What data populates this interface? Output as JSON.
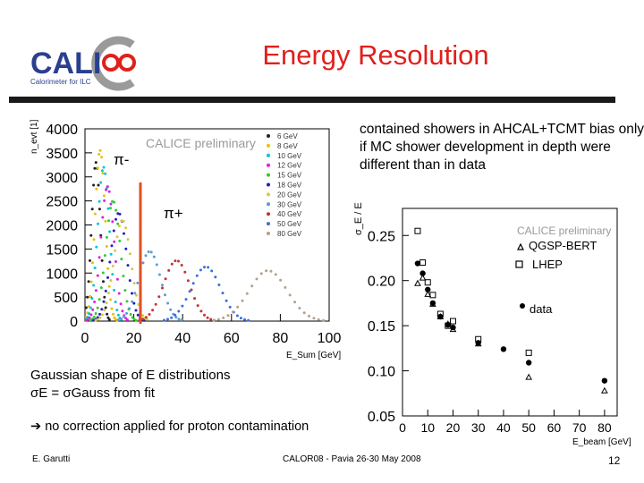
{
  "slide": {
    "title": "Energy Resolution",
    "note": "contained showers in AHCAL+TCMT bias only if MC shower development in depth were different than in data",
    "gauss_line1": "Gaussian shape of E distributions",
    "gauss_line2": "σE = σGauss from fit",
    "no_correction": "no correction applied for proton contamination",
    "footer_author": "E. Garutti",
    "footer_conf": "CALOR08 - Pavia 26-30 May 2008",
    "page_number": "12",
    "logo_text": "CALICE",
    "logo_subtitle": "Calorimeter for ILC"
  },
  "chart_data": [
    {
      "type": "scatter",
      "subtype": "histogram",
      "preliminary_label": "CALICE preliminary",
      "ylabel": "n_evt [1]",
      "xlabel": "E_Sum [GeV]",
      "xlim": [
        0,
        100
      ],
      "ylim": [
        0,
        4000
      ],
      "x_ticks": [
        0,
        20,
        40,
        60,
        80,
        100
      ],
      "y_ticks": [
        0,
        500,
        1000,
        1500,
        2000,
        2500,
        3000,
        3500,
        4000
      ],
      "annotations": [
        "π-",
        "π+"
      ],
      "series": [
        {
          "name": "6 GeV",
          "color": "#222222",
          "mean": 4.5,
          "peak": 3300,
          "sigma": 1.8
        },
        {
          "name": "8 GeV",
          "color": "#e6c200",
          "mean": 6.2,
          "peak": 3550,
          "sigma": 2.1
        },
        {
          "name": "10 GeV",
          "color": "#00c8d8",
          "mean": 7.6,
          "peak": 3200,
          "sigma": 2.4
        },
        {
          "name": "12 GeV",
          "color": "#e020e0",
          "mean": 9.2,
          "peak": 2800,
          "sigma": 2.7
        },
        {
          "name": "15 GeV",
          "color": "#33cc33",
          "mean": 11.5,
          "peak": 2500,
          "sigma": 3.0
        },
        {
          "name": "18 GeV",
          "color": "#2020c0",
          "mean": 13.8,
          "peak": 2250,
          "sigma": 3.3
        },
        {
          "name": "20 GeV",
          "color": "#d4c84a",
          "mean": 15.3,
          "peak": 2100,
          "sigma": 3.5
        },
        {
          "name": "30 GeV",
          "color": "#5b9bd5",
          "mean": 26.5,
          "peak": 1450,
          "sigma": 4.5
        },
        {
          "name": "40 GeV",
          "color": "#c83232",
          "mean": 37.5,
          "peak": 1260,
          "sigma": 5.3
        },
        {
          "name": "50 GeV",
          "color": "#3a6ee0",
          "mean": 49.5,
          "peak": 1130,
          "sigma": 6.0
        },
        {
          "name": "80 GeV",
          "color": "#b4a08c",
          "mean": 75.0,
          "peak": 1050,
          "sigma": 7.8
        }
      ]
    },
    {
      "type": "scatter",
      "preliminary_label": "CALICE preliminary",
      "ylabel": "σ_E / E",
      "xlabel": "E_beam [GeV]",
      "xlim": [
        0,
        85
      ],
      "ylim": [
        0.05,
        0.28
      ],
      "x_ticks": [
        0,
        10,
        20,
        30,
        40,
        50,
        60,
        70,
        80
      ],
      "y_ticks": [
        0.05,
        0.1,
        0.15,
        0.2,
        0.25
      ],
      "y_tick_labels": [
        "0.05",
        "0.10",
        "0.15",
        "0.20",
        "0.25"
      ],
      "legend": [
        "QGSP-BERT",
        "LHEP",
        "data"
      ],
      "series": [
        {
          "name": "QGSP-BERT",
          "marker": "triangle",
          "x": [
            6,
            8,
            10,
            12,
            15,
            18,
            20,
            30,
            50,
            80
          ],
          "y": [
            0.197,
            0.203,
            0.185,
            0.174,
            0.16,
            0.152,
            0.146,
            0.13,
            0.093,
            0.078
          ]
        },
        {
          "name": "LHEP",
          "marker": "square",
          "x": [
            6,
            8,
            10,
            12,
            15,
            18,
            20,
            30,
            50
          ],
          "y": [
            0.255,
            0.22,
            0.198,
            0.184,
            0.163,
            0.15,
            0.155,
            0.135,
            0.12
          ]
        },
        {
          "name": "data",
          "marker": "circle",
          "x": [
            6,
            8,
            10,
            12,
            15,
            18,
            20,
            30,
            40,
            50,
            80
          ],
          "y": [
            0.219,
            0.208,
            0.19,
            0.175,
            0.16,
            0.151,
            0.148,
            0.131,
            0.124,
            0.109,
            0.089
          ]
        }
      ]
    }
  ]
}
